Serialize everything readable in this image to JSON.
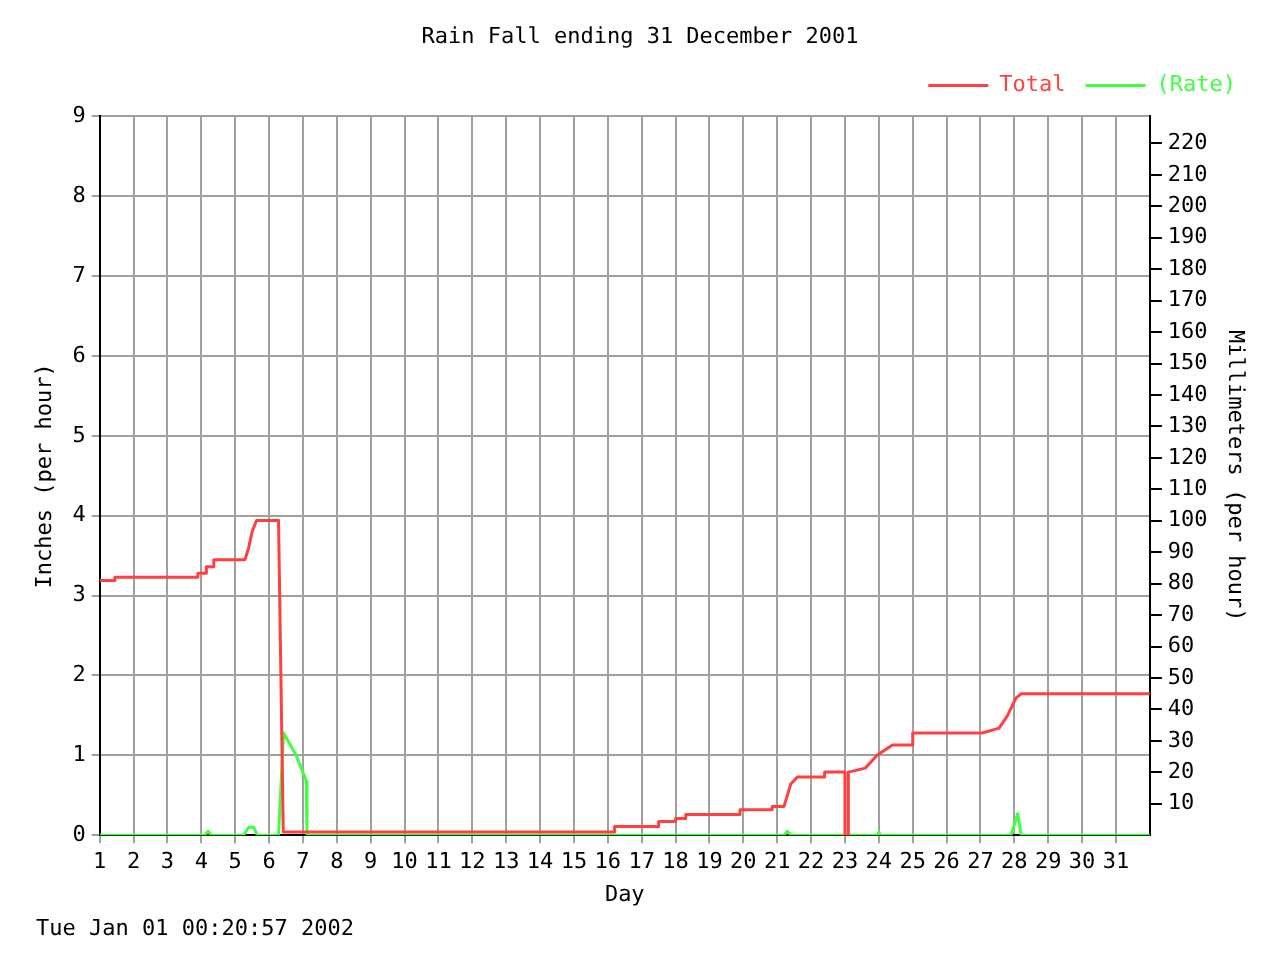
{
  "chart_data": {
    "type": "line",
    "title": "Rain Fall ending 31 December 2001",
    "xlabel": "Day",
    "ylabel": "Inches (per hour)",
    "y2label": "Millimeters (per hour)",
    "annotations": [
      "Tue Jan 01 00:20:57 2002"
    ],
    "xlim": [
      1,
      32
    ],
    "xticks": [
      1,
      2,
      3,
      4,
      5,
      6,
      7,
      8,
      9,
      10,
      11,
      12,
      13,
      14,
      15,
      16,
      17,
      18,
      19,
      20,
      21,
      22,
      23,
      24,
      25,
      26,
      27,
      28,
      29,
      30,
      31
    ],
    "ylim": [
      0,
      9
    ],
    "yticks": [
      0,
      1,
      2,
      3,
      4,
      5,
      6,
      7,
      8,
      9
    ],
    "y2lim": [
      0,
      228.6
    ],
    "y2ticks": [
      10,
      20,
      30,
      40,
      50,
      60,
      70,
      80,
      90,
      100,
      110,
      120,
      130,
      140,
      150,
      160,
      170,
      180,
      190,
      200,
      210,
      220
    ],
    "grid": true,
    "legend": "top right",
    "marker": "none",
    "line_style": "solid",
    "series": [
      {
        "name": "Total",
        "color": "#ff4040",
        "x": [
          1,
          1.45,
          1.45,
          3.9,
          3.9,
          4.15,
          4.15,
          4.37,
          4.37,
          5.29,
          5.4,
          5.5,
          5.63,
          6.28,
          6.42,
          6.42,
          16.2,
          16.2,
          17.5,
          17.5,
          18,
          18,
          18.3,
          18.3,
          19.9,
          19.9,
          20.85,
          20.85,
          21.2,
          21.4,
          21.6,
          22.4,
          22.4,
          23,
          23,
          23.1,
          23.1,
          23.6,
          23.95,
          24.4,
          24.85,
          25,
          25,
          27.05,
          27.55,
          27.8,
          28.05,
          28.2,
          32
        ],
        "values": [
          3.19,
          3.19,
          3.23,
          3.23,
          3.28,
          3.28,
          3.36,
          3.36,
          3.45,
          3.45,
          3.6,
          3.8,
          3.94,
          3.94,
          0.04,
          0.04,
          0.04,
          0.11,
          0.11,
          0.17,
          0.17,
          0.21,
          0.21,
          0.26,
          0.26,
          0.32,
          0.32,
          0.36,
          0.36,
          0.64,
          0.73,
          0.73,
          0.79,
          0.79,
          0,
          0,
          0.79,
          0.84,
          1,
          1.13,
          1.13,
          1.13,
          1.28,
          1.28,
          1.34,
          1.5,
          1.72,
          1.77,
          1.77
        ]
      },
      {
        "name": "(Rate)",
        "color": "#40ff40",
        "x": [
          1,
          4.1,
          4.2,
          4.3,
          5.25,
          5.4,
          5.55,
          5.65,
          6.28,
          6.43,
          6.8,
          7.1,
          7.12,
          21.2,
          21.3,
          21.4,
          23.95,
          24,
          24.05,
          27.9,
          28.1,
          28.2,
          32
        ],
        "values": [
          0,
          0,
          0.05,
          0,
          0,
          0.1,
          0.1,
          0,
          0,
          1.28,
          1,
          0.68,
          0,
          0,
          0.05,
          0,
          0,
          0.04,
          0,
          0,
          0.27,
          0,
          0
        ]
      }
    ]
  }
}
